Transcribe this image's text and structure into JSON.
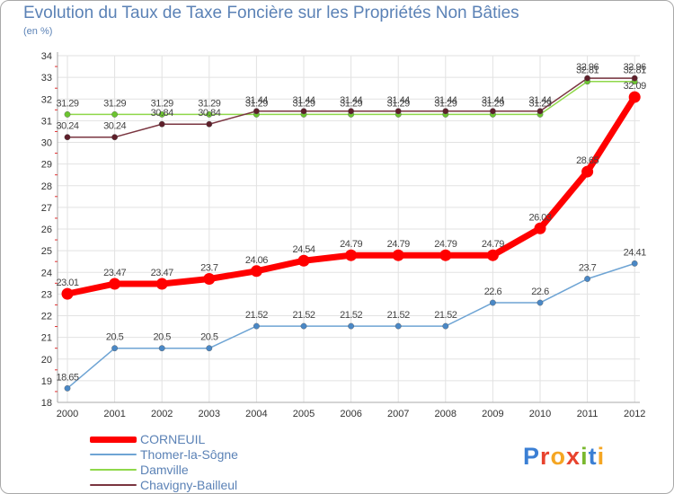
{
  "header": {
    "title": "Evolution du Taux de Taxe Foncière sur les Propriétés Non Bâties",
    "unit": "(en %)"
  },
  "logo": {
    "text": "Proxiti",
    "colors": [
      "#3b7fd4",
      "#e8432e",
      "#f5a623",
      "#e8432e",
      "#79b82e",
      "#3b7fd4",
      "#f5a623"
    ]
  },
  "colors": {
    "grid": "#e2e2e2",
    "axis": "#aaaaaa",
    "tick_text": "#333333",
    "dashes": "#e03030"
  },
  "chart_data": {
    "type": "line",
    "title": "Evolution du Taux de Taxe Foncière sur les Propriétés Non Bâties",
    "ylabel": "(en %)",
    "xlabel": "",
    "ylim": [
      18,
      34
    ],
    "grid": true,
    "legend": "bottom-left",
    "categories": [
      "2000",
      "2001",
      "2002",
      "2003",
      "2004",
      "2005",
      "2006",
      "2007",
      "2008",
      "2009",
      "2010",
      "2011",
      "2012"
    ],
    "yticks": [
      "18",
      "19",
      "20",
      "21",
      "22",
      "23",
      "24",
      "25",
      "26",
      "27",
      "28",
      "29",
      "30",
      "31",
      "32",
      "33",
      "34"
    ],
    "series": [
      {
        "name": "Damville",
        "color": "#8fd84a",
        "dot": "#6cc530",
        "values": [
          31.29,
          31.29,
          31.29,
          31.29,
          31.29,
          31.29,
          31.29,
          31.29,
          31.29,
          31.29,
          31.29,
          32.81,
          32.81
        ],
        "labels": [
          "31.29",
          "31.29",
          "31.29",
          "31.29",
          "31.29",
          "31.29",
          "31.29",
          "31.29",
          "31.29",
          "31.29",
          "31.29",
          "32.81",
          "32.81"
        ]
      },
      {
        "name": "Chavigny-Bailleul",
        "color": "#7a3540",
        "dot": "#5e1f2a",
        "values": [
          30.24,
          30.24,
          30.84,
          30.84,
          31.44,
          31.44,
          31.44,
          31.44,
          31.44,
          31.44,
          31.44,
          32.96,
          32.96
        ],
        "labels": [
          "30.24",
          "30.24",
          "30.84",
          "30.84",
          "31.44",
          "31.44",
          "31.44",
          "31.44",
          "31.44",
          "31.44",
          "31.44",
          "32.96",
          "32.96"
        ]
      },
      {
        "name": "Thomer-la-Sôgne",
        "color": "#6ea4d4",
        "dot": "#4a88c6",
        "values": [
          18.65,
          20.5,
          20.5,
          20.5,
          21.52,
          21.52,
          21.52,
          21.52,
          21.52,
          22.6,
          22.6,
          23.7,
          24.41
        ],
        "labels": [
          "18.65",
          "20.5",
          "20.5",
          "20.5",
          "21.52",
          "21.52",
          "21.52",
          "21.52",
          "21.52",
          "22.6",
          "22.6",
          "23.7",
          "24.41"
        ]
      },
      {
        "name": "CORNEUIL",
        "color": "#ff0000",
        "dot": "#ff0000",
        "values": [
          23.01,
          23.47,
          23.47,
          23.7,
          24.06,
          24.54,
          24.79,
          24.79,
          24.79,
          24.79,
          26.03,
          28.65,
          32.09
        ],
        "labels": [
          "23.01",
          "23.47",
          "23.47",
          "23.7",
          "24.06",
          "24.54",
          "24.79",
          "24.79",
          "24.79",
          "24.79",
          "26.03",
          "28.65",
          "32.09"
        ]
      }
    ],
    "legend_order": [
      "CORNEUIL",
      "Thomer-la-Sôgne",
      "Damville",
      "Chavigny-Bailleul"
    ]
  }
}
